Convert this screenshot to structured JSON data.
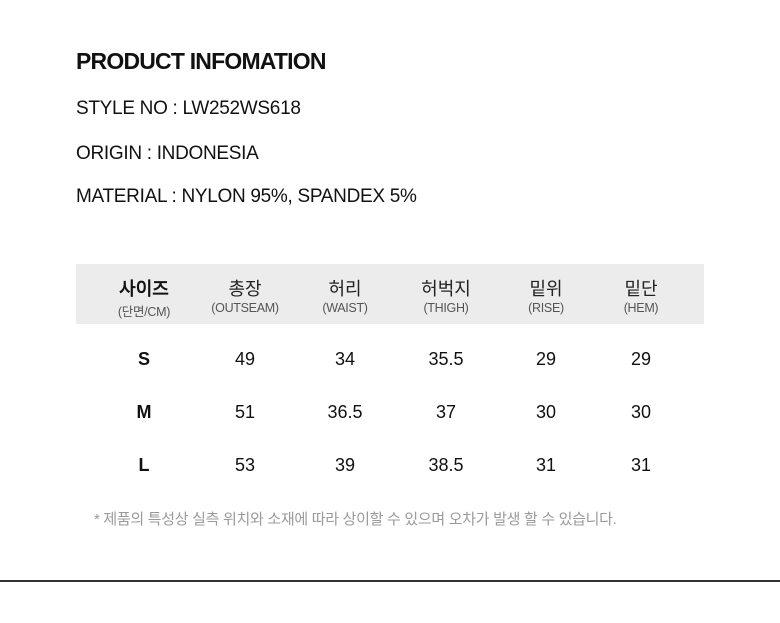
{
  "title": "PRODUCT INFOMATION",
  "info": [
    "STYLE NO : LW252WS618",
    "ORIGIN : INDONESIA",
    "MATERIAL : NYLON 95%, SPANDEX 5%"
  ],
  "table": {
    "headers": [
      {
        "ko": "사이즈",
        "en": "(단면/CM)"
      },
      {
        "ko": "총장",
        "en": "(OUTSEAM)"
      },
      {
        "ko": "허리",
        "en": "(WAIST)"
      },
      {
        "ko": "허벅지",
        "en": "(THIGH)"
      },
      {
        "ko": "밑위",
        "en": "(RISE)"
      },
      {
        "ko": "밑단",
        "en": "(HEM)"
      }
    ],
    "rows": [
      [
        "S",
        "49",
        "34",
        "35.5",
        "29",
        "29"
      ],
      [
        "M",
        "51",
        "36.5",
        "37",
        "30",
        "30"
      ],
      [
        "L",
        "53",
        "39",
        "38.5",
        "31",
        "31"
      ]
    ],
    "header_bg": "#ececec"
  },
  "note": "* 제품의 특성상 실측 위치와 소재에 따라 상이할 수 있으며 오차가 발생 할 수 있습니다."
}
